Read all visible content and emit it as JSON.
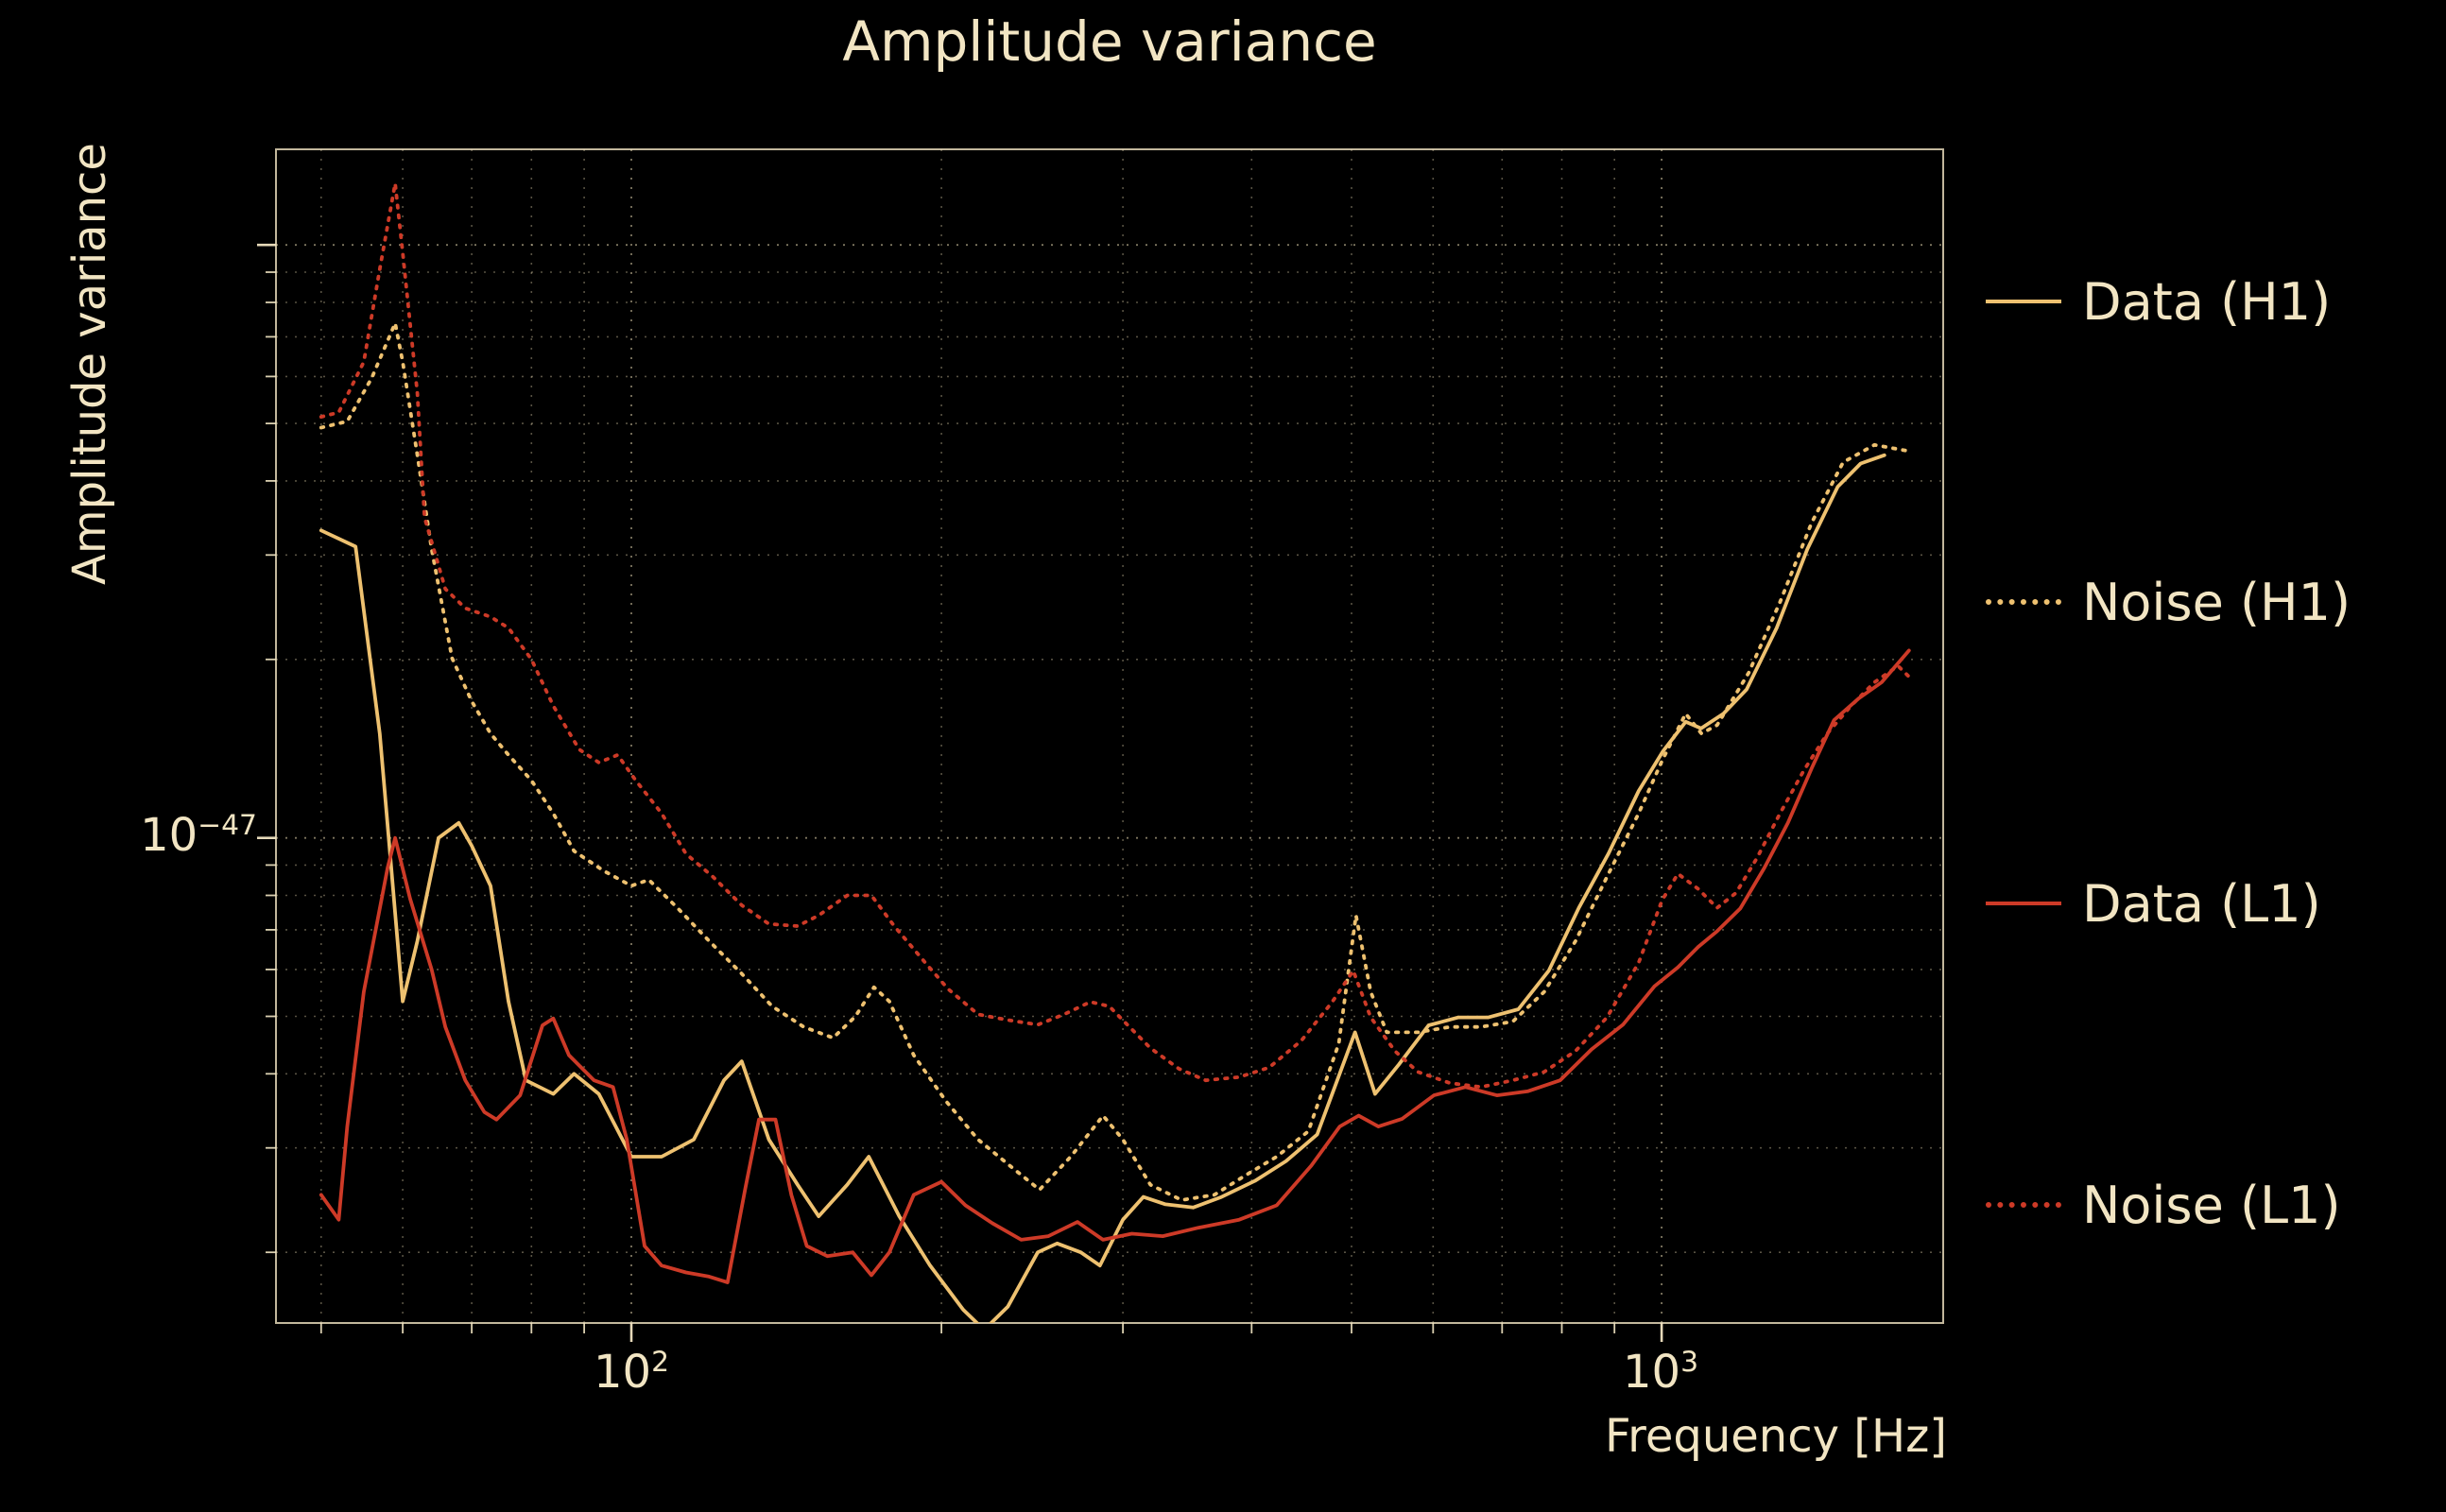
{
  "title": "Amplitude variance",
  "colors": {
    "background": "#000000",
    "text": "#f2e5c3",
    "grid": "#e8d8b0",
    "h1": "#eec170",
    "l1": "#cd3a27"
  },
  "axes": {
    "xlabel": "Frequency [Hz]",
    "ylabel": "Amplitude variance",
    "xscale": "log",
    "yscale": "log",
    "xticks": [
      {
        "base": "10",
        "exp": "2",
        "value": 100
      },
      {
        "base": "10",
        "exp": "3",
        "value": 1000
      }
    ],
    "yticks": [
      {
        "base": "10",
        "exp": "−47",
        "value": 1e-47
      }
    ]
  },
  "legend": [
    {
      "label": "Data (H1)",
      "style": "solid",
      "color_key": "h1"
    },
    {
      "label": "Noise (H1)",
      "style": "dotted",
      "color_key": "h1"
    },
    {
      "label": "Data (L1)",
      "style": "solid",
      "color_key": "l1"
    },
    {
      "label": "Noise (L1)",
      "style": "dotted",
      "color_key": "l1"
    }
  ],
  "chart_data": {
    "type": "line",
    "title": "Amplitude variance",
    "xlabel": "Frequency [Hz]",
    "ylabel": "Amplitude variance",
    "xscale": "log",
    "yscale": "log",
    "xlim": [
      45.2,
      1876
    ],
    "ylim": [
      1.52e-48,
      1.45e-46
    ],
    "grid": true,
    "grid_style": "dotted",
    "legend_position": "right-outside",
    "series": [
      {
        "name": "Data (H1)",
        "color": "#eec170",
        "line_style": "solid",
        "points": [
          [
            50,
            3.3e-47
          ],
          [
            54,
            3.1e-47
          ],
          [
            57,
            1.5e-47
          ],
          [
            60,
            5.3e-48
          ],
          [
            62,
            6.7e-48
          ],
          [
            65,
            1e-47
          ],
          [
            68,
            1.06e-47
          ],
          [
            70,
            9.7e-48
          ],
          [
            73,
            8.3e-48
          ],
          [
            76,
            5.3e-48
          ],
          [
            79,
            3.9e-48
          ],
          [
            84,
            3.7e-48
          ],
          [
            88,
            4e-48
          ],
          [
            93,
            3.7e-48
          ],
          [
            100,
            2.9e-48
          ],
          [
            107,
            2.9e-48
          ],
          [
            115,
            3.1e-48
          ],
          [
            123,
            3.9e-48
          ],
          [
            128,
            4.2e-48
          ],
          [
            136,
            3.1e-48
          ],
          [
            145,
            2.6e-48
          ],
          [
            152,
            2.3e-48
          ],
          [
            162,
            2.6e-48
          ],
          [
            170,
            2.9e-48
          ],
          [
            182,
            2.3e-48
          ],
          [
            195,
            1.9e-48
          ],
          [
            210,
            1.6e-48
          ],
          [
            220,
            1.48e-48
          ],
          [
            232,
            1.62e-48
          ],
          [
            248,
            2e-48
          ],
          [
            259,
            2.07e-48
          ],
          [
            273,
            2e-48
          ],
          [
            285,
            1.9e-48
          ],
          [
            300,
            2.27e-48
          ],
          [
            314,
            2.48e-48
          ],
          [
            330,
            2.41e-48
          ],
          [
            351,
            2.38e-48
          ],
          [
            374,
            2.48e-48
          ],
          [
            403,
            2.64e-48
          ],
          [
            432,
            2.85e-48
          ],
          [
            463,
            3.16e-48
          ],
          [
            504,
            4.7e-48
          ],
          [
            527,
            3.7e-48
          ],
          [
            556,
            4.15e-48
          ],
          [
            594,
            4.83e-48
          ],
          [
            635,
            4.98e-48
          ],
          [
            679,
            4.98e-48
          ],
          [
            726,
            5.14e-48
          ],
          [
            777,
            5.97e-48
          ],
          [
            831,
            7.62e-48
          ],
          [
            888,
            9.41e-48
          ],
          [
            950,
            1.2e-47
          ],
          [
            1003,
            1.4e-47
          ],
          [
            1055,
            1.57e-47
          ],
          [
            1092,
            1.53e-47
          ],
          [
            1148,
            1.62e-47
          ],
          [
            1209,
            1.78e-47
          ],
          [
            1293,
            2.26e-47
          ],
          [
            1385,
            3.07e-47
          ],
          [
            1482,
            3.91e-47
          ],
          [
            1560,
            4.28e-47
          ],
          [
            1645,
            4.42e-47
          ]
        ]
      },
      {
        "name": "Noise (H1)",
        "color": "#eec170",
        "line_style": "dotted",
        "points": [
          [
            50,
            4.92e-47
          ],
          [
            53,
            5.04e-47
          ],
          [
            56,
            5.97e-47
          ],
          [
            59,
            7.38e-47
          ],
          [
            60,
            6.35e-47
          ],
          [
            62,
            4.42e-47
          ],
          [
            64,
            3.07e-47
          ],
          [
            67,
            2.01e-47
          ],
          [
            70,
            1.7e-47
          ],
          [
            73,
            1.5e-47
          ],
          [
            76,
            1.38e-47
          ],
          [
            80,
            1.25e-47
          ],
          [
            84,
            1.1e-47
          ],
          [
            88,
            9.5e-48
          ],
          [
            94,
            8.8e-48
          ],
          [
            100,
            8.3e-48
          ],
          [
            104,
            8.5e-48
          ],
          [
            111,
            7.6e-48
          ],
          [
            119,
            6.7e-48
          ],
          [
            128,
            5.9e-48
          ],
          [
            137,
            5.2e-48
          ],
          [
            147,
            4.8e-48
          ],
          [
            157,
            4.6e-48
          ],
          [
            165,
            5e-48
          ],
          [
            172,
            5.6e-48
          ],
          [
            178,
            5.3e-48
          ],
          [
            188,
            4.3e-48
          ],
          [
            202,
            3.6e-48
          ],
          [
            217,
            3.1e-48
          ],
          [
            233,
            2.8e-48
          ],
          [
            249,
            2.55e-48
          ],
          [
            267,
            2.9e-48
          ],
          [
            287,
            3.4e-48
          ],
          [
            300,
            3.1e-48
          ],
          [
            319,
            2.6e-48
          ],
          [
            342,
            2.45e-48
          ],
          [
            368,
            2.5e-48
          ],
          [
            395,
            2.7e-48
          ],
          [
            423,
            2.9e-48
          ],
          [
            454,
            3.2e-48
          ],
          [
            486,
            4.5e-48
          ],
          [
            505,
            7.4e-48
          ],
          [
            522,
            5.5e-48
          ],
          [
            541,
            4.7e-48
          ],
          [
            580,
            4.7e-48
          ],
          [
            623,
            4.8e-48
          ],
          [
            668,
            4.8e-48
          ],
          [
            717,
            4.9e-48
          ],
          [
            769,
            5.5e-48
          ],
          [
            825,
            6.7e-48
          ],
          [
            885,
            8.6e-48
          ],
          [
            950,
            1.1e-47
          ],
          [
            1001,
            1.35e-47
          ],
          [
            1055,
            1.62e-47
          ],
          [
            1093,
            1.5e-47
          ],
          [
            1132,
            1.55e-47
          ],
          [
            1215,
            1.9e-47
          ],
          [
            1303,
            2.5e-47
          ],
          [
            1398,
            3.4e-47
          ],
          [
            1500,
            4.3e-47
          ],
          [
            1609,
            4.6e-47
          ],
          [
            1726,
            4.5e-47
          ]
        ]
      },
      {
        "name": "Data (L1)",
        "color": "#cd3a27",
        "line_style": "solid",
        "points": [
          [
            50,
            2.5e-48
          ],
          [
            52,
            2.27e-48
          ],
          [
            53,
            3.26e-48
          ],
          [
            55,
            5.5e-48
          ],
          [
            58,
            8.9e-48
          ],
          [
            59,
            1e-47
          ],
          [
            61,
            7.9e-48
          ],
          [
            64,
            6e-48
          ],
          [
            66,
            4.8e-48
          ],
          [
            69,
            3.9e-48
          ],
          [
            72,
            3.45e-48
          ],
          [
            74,
            3.35e-48
          ],
          [
            78,
            3.68e-48
          ],
          [
            82,
            4.83e-48
          ],
          [
            84,
            4.96e-48
          ],
          [
            87,
            4.3e-48
          ],
          [
            92,
            3.9e-48
          ],
          [
            96,
            3.8e-48
          ],
          [
            99,
            3.1e-48
          ],
          [
            103,
            2.05e-48
          ],
          [
            107,
            1.9e-48
          ],
          [
            113,
            1.85e-48
          ],
          [
            119,
            1.82e-48
          ],
          [
            124,
            1.78e-48
          ],
          [
            129,
            2.56e-48
          ],
          [
            133,
            3.35e-48
          ],
          [
            138,
            3.35e-48
          ],
          [
            143,
            2.5e-48
          ],
          [
            148,
            2.05e-48
          ],
          [
            155,
            1.97e-48
          ],
          [
            164,
            2e-48
          ],
          [
            171,
            1.83e-48
          ],
          [
            178,
            2e-48
          ],
          [
            188,
            2.5e-48
          ],
          [
            200,
            2.63e-48
          ],
          [
            211,
            2.4e-48
          ],
          [
            224,
            2.24e-48
          ],
          [
            239,
            2.1e-48
          ],
          [
            254,
            2.13e-48
          ],
          [
            271,
            2.25e-48
          ],
          [
            287,
            2.1e-48
          ],
          [
            306,
            2.15e-48
          ],
          [
            328,
            2.13e-48
          ],
          [
            355,
            2.2e-48
          ],
          [
            389,
            2.27e-48
          ],
          [
            423,
            2.4e-48
          ],
          [
            457,
            2.8e-48
          ],
          [
            487,
            3.26e-48
          ],
          [
            508,
            3.4e-48
          ],
          [
            531,
            3.26e-48
          ],
          [
            560,
            3.36e-48
          ],
          [
            601,
            3.68e-48
          ],
          [
            645,
            3.8e-48
          ],
          [
            692,
            3.68e-48
          ],
          [
            742,
            3.74e-48
          ],
          [
            797,
            3.9e-48
          ],
          [
            855,
            4.4e-48
          ],
          [
            917,
            4.84e-48
          ],
          [
            984,
            5.62e-48
          ],
          [
            1037,
            6.05e-48
          ],
          [
            1085,
            6.55e-48
          ],
          [
            1132,
            6.96e-48
          ],
          [
            1192,
            7.6e-48
          ],
          [
            1258,
            8.9e-48
          ],
          [
            1326,
            1.06e-47
          ],
          [
            1398,
            1.31e-47
          ],
          [
            1470,
            1.58e-47
          ],
          [
            1554,
            1.72e-47
          ],
          [
            1635,
            1.83e-47
          ],
          [
            1738,
            2.07e-47
          ]
        ]
      },
      {
        "name": "Noise (L1)",
        "color": "#cd3a27",
        "line_style": "dotted",
        "points": [
          [
            50,
            5.13e-47
          ],
          [
            52,
            5.22e-47
          ],
          [
            55,
            6.35e-47
          ],
          [
            57,
            9.1e-47
          ],
          [
            59,
            1.27e-46
          ],
          [
            60,
            9.7e-47
          ],
          [
            62,
            5.62e-47
          ],
          [
            63,
            3.47e-47
          ],
          [
            66,
            2.63e-47
          ],
          [
            69,
            2.44e-47
          ],
          [
            73,
            2.36e-47
          ],
          [
            76,
            2.26e-47
          ],
          [
            80,
            2e-47
          ],
          [
            84,
            1.67e-47
          ],
          [
            89,
            1.41e-47
          ],
          [
            93,
            1.34e-47
          ],
          [
            97,
            1.38e-47
          ],
          [
            101,
            1.25e-47
          ],
          [
            107,
            1.1e-47
          ],
          [
            113,
            9.4e-48
          ],
          [
            120,
            8.6e-48
          ],
          [
            128,
            7.7e-48
          ],
          [
            136,
            7.16e-48
          ],
          [
            145,
            7.1e-48
          ],
          [
            152,
            7.4e-48
          ],
          [
            162,
            8e-48
          ],
          [
            171,
            8e-48
          ],
          [
            180,
            7.1e-48
          ],
          [
            193,
            6.15e-48
          ],
          [
            203,
            5.56e-48
          ],
          [
            217,
            5.04e-48
          ],
          [
            232,
            4.93e-48
          ],
          [
            248,
            4.84e-48
          ],
          [
            263,
            5.04e-48
          ],
          [
            279,
            5.29e-48
          ],
          [
            291,
            5.2e-48
          ],
          [
            303,
            4.84e-48
          ],
          [
            319,
            4.42e-48
          ],
          [
            340,
            4.08e-48
          ],
          [
            361,
            3.9e-48
          ],
          [
            389,
            3.95e-48
          ],
          [
            416,
            4.1e-48
          ],
          [
            447,
            4.55e-48
          ],
          [
            479,
            5.29e-48
          ],
          [
            502,
            5.97e-48
          ],
          [
            522,
            4.98e-48
          ],
          [
            551,
            4.37e-48
          ],
          [
            580,
            4.03e-48
          ],
          [
            623,
            3.86e-48
          ],
          [
            668,
            3.8e-48
          ],
          [
            717,
            3.9e-48
          ],
          [
            769,
            4.03e-48
          ],
          [
            825,
            4.37e-48
          ],
          [
            885,
            4.98e-48
          ],
          [
            950,
            6.16e-48
          ],
          [
            1001,
            7.85e-48
          ],
          [
            1037,
            8.7e-48
          ],
          [
            1085,
            8.2e-48
          ],
          [
            1132,
            7.62e-48
          ],
          [
            1181,
            8.08e-48
          ],
          [
            1237,
            9.24e-48
          ],
          [
            1303,
            1.1e-47
          ],
          [
            1374,
            1.3e-47
          ],
          [
            1448,
            1.5e-47
          ],
          [
            1527,
            1.67e-47
          ],
          [
            1609,
            1.83e-47
          ],
          [
            1696,
            1.95e-47
          ],
          [
            1738,
            1.87e-47
          ]
        ]
      }
    ]
  }
}
